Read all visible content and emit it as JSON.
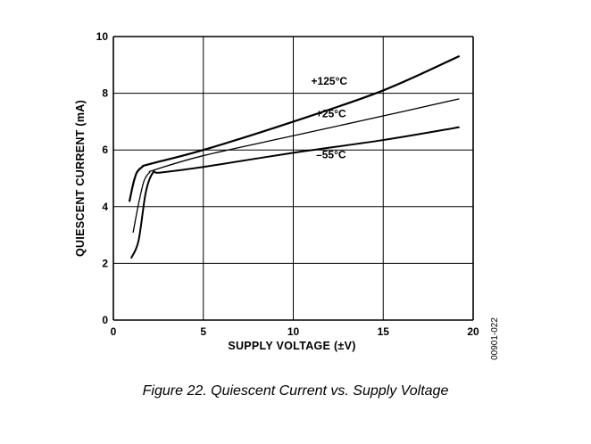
{
  "chart_data": {
    "type": "line",
    "xlabel": "SUPPLY VOLTAGE (±V)",
    "ylabel": "QUIESCENT CURRENT (mA)",
    "xlim": [
      0,
      20
    ],
    "ylim": [
      0,
      10
    ],
    "x_ticks": [
      "0",
      "5",
      "10",
      "15",
      "20"
    ],
    "y_ticks": [
      "0",
      "2",
      "4",
      "6",
      "8",
      "10"
    ],
    "grid": true,
    "series": [
      {
        "name": "+125°C",
        "x": [
          0.9,
          1.1,
          1.3,
          1.6,
          2.0,
          5,
          10,
          15,
          19.2
        ],
        "y": [
          4.2,
          4.8,
          5.2,
          5.4,
          5.5,
          6.0,
          7.0,
          8.1,
          9.3
        ]
      },
      {
        "name": "+25°C",
        "x": [
          1.1,
          1.4,
          1.7,
          2.0,
          2.3,
          5,
          10,
          15,
          19.2
        ],
        "y": [
          3.1,
          4.1,
          4.9,
          5.2,
          5.3,
          5.8,
          6.5,
          7.2,
          7.8
        ]
      },
      {
        "name": "–55°C",
        "x": [
          1.0,
          1.4,
          1.8,
          2.2,
          2.6,
          5,
          10,
          15,
          19.2
        ],
        "y": [
          2.2,
          2.8,
          4.5,
          5.2,
          5.2,
          5.4,
          5.9,
          6.35,
          6.8
        ]
      }
    ],
    "label_positions_data": [
      {
        "text": "+125°C",
        "x": 12.0,
        "y": 8.3
      },
      {
        "text": "+25°C",
        "x": 12.1,
        "y": 7.15
      },
      {
        "text": "–55°C",
        "x": 12.1,
        "y": 5.7
      }
    ]
  },
  "figure_code": "00901-022",
  "caption": "Figure 22. Quiescent Current vs. Supply Voltage"
}
